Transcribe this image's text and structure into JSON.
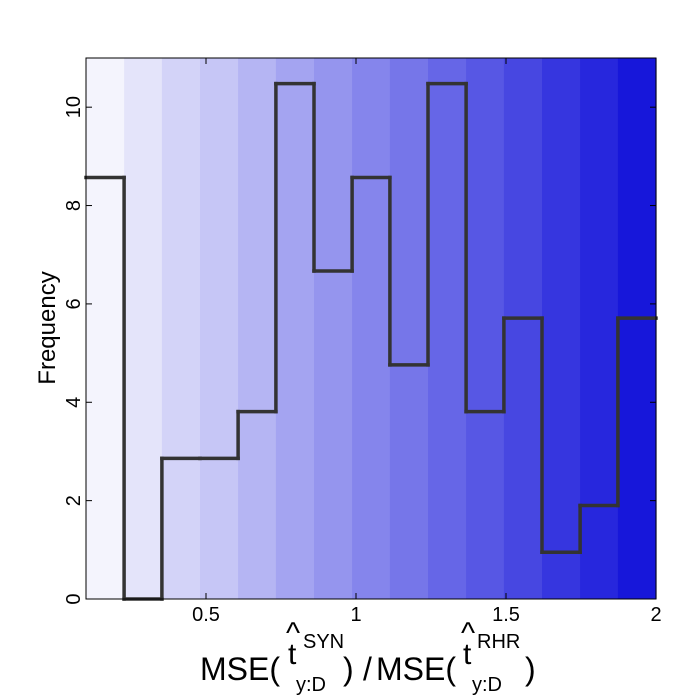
{
  "chart_data": {
    "type": "histogram",
    "ylabel": "Frequency",
    "xlabel": {
      "lhs_prefix": "MSE(",
      "lhs_symbol": "t",
      "lhs_hat": "^",
      "lhs_sup": "SYN",
      "lhs_sub": "y:D",
      "lhs_close": ")",
      "divider": "/",
      "rhs_prefix": "MSE(",
      "rhs_symbol": "t",
      "rhs_hat": "^",
      "rhs_sup": "RHR",
      "rhs_sub": "y:D",
      "rhs_close": ")"
    },
    "xlim": [
      0.1,
      2.0
    ],
    "ylim": [
      0,
      11
    ],
    "x_ticks": [
      0.5,
      1,
      1.5,
      2
    ],
    "x_tick_labels": [
      "0.5",
      "1",
      "1.5",
      "2"
    ],
    "y_ticks": [
      0,
      2,
      4,
      6,
      8,
      10
    ],
    "y_tick_labels": [
      "0",
      "2",
      "4",
      "6",
      "8",
      "10"
    ],
    "bin_edges": [
      0.1,
      0.227,
      0.353,
      0.48,
      0.607,
      0.733,
      0.86,
      0.987,
      1.113,
      1.24,
      1.367,
      1.493,
      1.62,
      1.747,
      1.873,
      2.0
    ],
    "frequencies": [
      8.57,
      0,
      2.86,
      2.86,
      3.81,
      10.48,
      6.67,
      8.57,
      4.76,
      10.48,
      3.81,
      5.71,
      0.95,
      1.9,
      5.71
    ],
    "line_color": "#333333",
    "background_gradient": [
      "#f4f4fd",
      "#e4e4fa",
      "#d3d3f8",
      "#c6c6f6",
      "#b5b5f3",
      "#a4a4f1",
      "#9595ee",
      "#8585ec",
      "#7676e9",
      "#6666e7",
      "#5757e4",
      "#4747e1",
      "#3636df",
      "#2727dd",
      "#1717da"
    ]
  }
}
